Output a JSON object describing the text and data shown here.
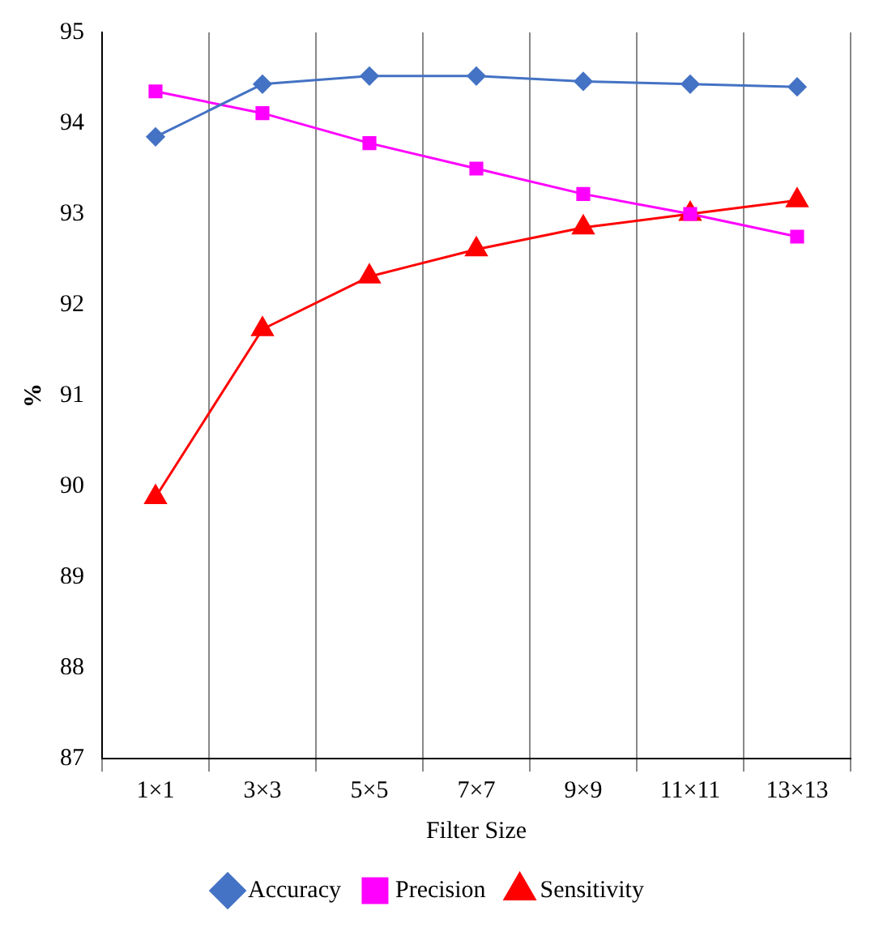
{
  "chart_data": {
    "type": "line",
    "xlabel": "Filter Size",
    "ylabel": "%",
    "categories": [
      "1×1",
      "3×3",
      "5×5",
      "7×7",
      "9×9",
      "11×11",
      "13×13"
    ],
    "series": [
      {
        "name": "Accuracy",
        "color": "#4472c4",
        "marker": "diamond",
        "values": [
          93.85,
          94.43,
          94.52,
          94.52,
          94.46,
          94.43,
          94.4
        ]
      },
      {
        "name": "Precision",
        "color": "#ff00ff",
        "marker": "square",
        "values": [
          94.35,
          94.11,
          93.78,
          93.5,
          93.22,
          93.0,
          92.75
        ]
      },
      {
        "name": "Sensitivity",
        "color": "#ff0000",
        "marker": "triangle",
        "values": [
          89.88,
          91.73,
          92.31,
          92.61,
          92.85,
          93.0,
          93.15
        ]
      }
    ],
    "ylim": [
      87,
      95
    ],
    "yticks": [
      87,
      88,
      89,
      90,
      91,
      92,
      93,
      94,
      95
    ],
    "grid": "x",
    "legend": "bottom",
    "line_style": "solid"
  }
}
